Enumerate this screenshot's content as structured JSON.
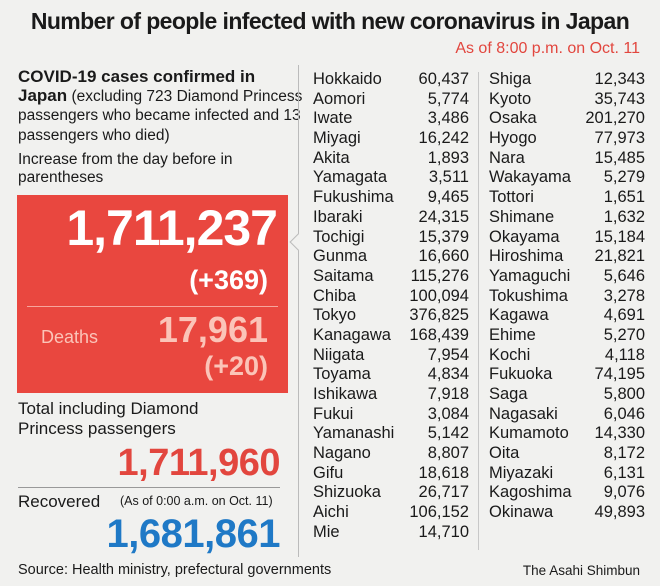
{
  "header": {
    "title": "Number of people infected with new coronavirus in Japan",
    "as_of": "As of 8:00 p.m. on Oct. 11"
  },
  "summary": {
    "heading_bold": "COVID-19 cases confirmed in Japan",
    "heading_note": " (excluding 723 Diamond Princess passengers who became infected and 13 passengers who died)",
    "increase_note": "Increase from the day before in parentheses",
    "total": "1,711,237",
    "total_increase": "(+369)",
    "deaths_label": "Deaths",
    "deaths": "17,961",
    "deaths_increase": "(+20)",
    "total_incl_label": "Total including Diamond Princess passengers",
    "total_incl": "1,711,960",
    "recovered_label": "Recovered",
    "recovered_note": "(As of 0:00 a.m. on Oct. 11)",
    "recovered": "1,681,861"
  },
  "colors": {
    "accent_red": "#e9473f",
    "recovered_blue": "#1f79c6",
    "deaths_pink": "#fbc4b8"
  },
  "prefectures_left": [
    [
      "Hokkaido",
      "60,437"
    ],
    [
      "Aomori",
      "5,774"
    ],
    [
      "Iwate",
      "3,486"
    ],
    [
      "Miyagi",
      "16,242"
    ],
    [
      "Akita",
      "1,893"
    ],
    [
      "Yamagata",
      "3,511"
    ],
    [
      "Fukushima",
      "9,465"
    ],
    [
      "Ibaraki",
      "24,315"
    ],
    [
      "Tochigi",
      "15,379"
    ],
    [
      "Gunma",
      "16,660"
    ],
    [
      "Saitama",
      "115,276"
    ],
    [
      "Chiba",
      "100,094"
    ],
    [
      "Tokyo",
      "376,825"
    ],
    [
      "Kanagawa",
      "168,439"
    ],
    [
      "Niigata",
      "7,954"
    ],
    [
      "Toyama",
      "4,834"
    ],
    [
      "Ishikawa",
      "7,918"
    ],
    [
      "Fukui",
      "3,084"
    ],
    [
      "Yamanashi",
      "5,142"
    ],
    [
      "Nagano",
      "8,807"
    ],
    [
      "Gifu",
      "18,618"
    ],
    [
      "Shizuoka",
      "26,717"
    ],
    [
      "Aichi",
      "106,152"
    ],
    [
      "Mie",
      "14,710"
    ]
  ],
  "prefectures_right": [
    [
      "Shiga",
      "12,343"
    ],
    [
      "Kyoto",
      "35,743"
    ],
    [
      "Osaka",
      "201,270"
    ],
    [
      "Hyogo",
      "77,973"
    ],
    [
      "Nara",
      "15,485"
    ],
    [
      "Wakayama",
      "5,279"
    ],
    [
      "Tottori",
      "1,651"
    ],
    [
      "Shimane",
      "1,632"
    ],
    [
      "Okayama",
      "15,184"
    ],
    [
      "Hiroshima",
      "21,821"
    ],
    [
      "Yamaguchi",
      "5,646"
    ],
    [
      "Tokushima",
      "3,278"
    ],
    [
      "Kagawa",
      "4,691"
    ],
    [
      "Ehime",
      "5,270"
    ],
    [
      "Kochi",
      "4,118"
    ],
    [
      "Fukuoka",
      "74,195"
    ],
    [
      "Saga",
      "5,800"
    ],
    [
      "Nagasaki",
      "6,046"
    ],
    [
      "Kumamoto",
      "14,330"
    ],
    [
      "Oita",
      "8,172"
    ],
    [
      "Miyazaki",
      "6,131"
    ],
    [
      "Kagoshima",
      "9,076"
    ],
    [
      "Okinawa",
      "49,893"
    ]
  ],
  "footer": {
    "source": "Source: Health ministry, prefectural governments",
    "credit": "The Asahi Shimbun"
  }
}
